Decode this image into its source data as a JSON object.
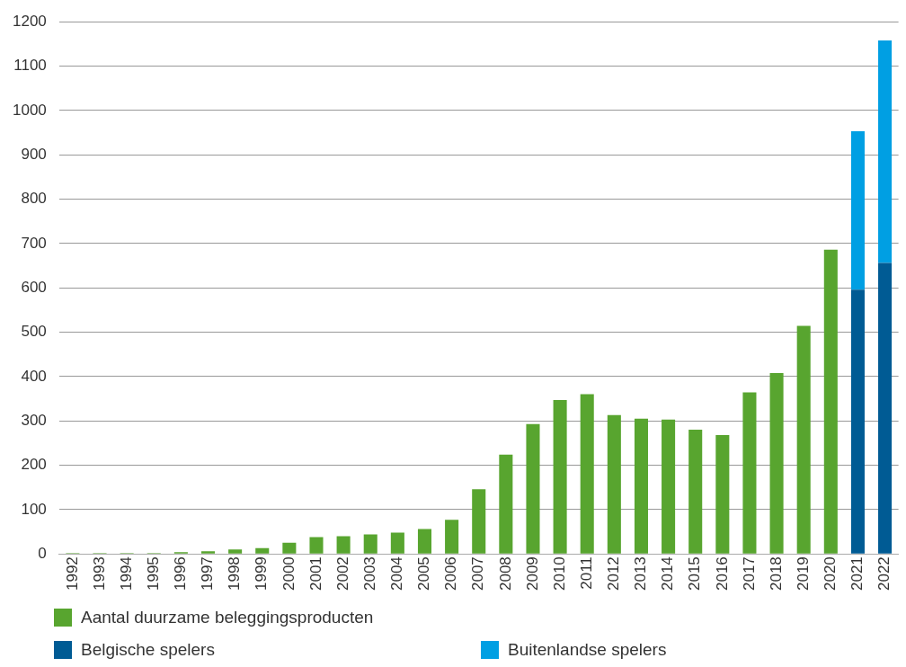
{
  "chart_data": {
    "type": "bar",
    "stacked": true,
    "categories": [
      "1992",
      "1993",
      "1994",
      "1995",
      "1996",
      "1997",
      "1998",
      "1999",
      "2000",
      "2001",
      "2002",
      "2003",
      "2004",
      "2005",
      "2006",
      "2007",
      "2008",
      "2009",
      "2010",
      "2011",
      "2012",
      "2013",
      "2014",
      "2015",
      "2016",
      "2017",
      "2018",
      "2019",
      "2020",
      "2021",
      "2022"
    ],
    "series": [
      {
        "name": "Aantal duurzame beleggingsproducten",
        "color": "#58a52f",
        "values": [
          2,
          2,
          2,
          2,
          4,
          6,
          10,
          13,
          25,
          38,
          40,
          44,
          48,
          56,
          77,
          146,
          224,
          293,
          347,
          360,
          313,
          305,
          303,
          280,
          268,
          364,
          408,
          514,
          686,
          null,
          null
        ]
      },
      {
        "name": "Belgische spelers",
        "color": "#005b94",
        "values": [
          null,
          null,
          null,
          null,
          null,
          null,
          null,
          null,
          null,
          null,
          null,
          null,
          null,
          null,
          null,
          null,
          null,
          null,
          null,
          null,
          null,
          null,
          null,
          null,
          null,
          null,
          null,
          null,
          null,
          596,
          656
        ]
      },
      {
        "name": "Buitenlandse spelers",
        "color": "#009fe3",
        "values": [
          null,
          null,
          null,
          null,
          null,
          null,
          null,
          null,
          null,
          null,
          null,
          null,
          null,
          null,
          null,
          null,
          null,
          null,
          null,
          null,
          null,
          null,
          null,
          null,
          null,
          null,
          null,
          null,
          null,
          357,
          502
        ]
      }
    ],
    "ylim": [
      0,
      1200
    ],
    "yticks": [
      0,
      100,
      200,
      300,
      400,
      500,
      600,
      700,
      800,
      900,
      1000,
      1100,
      1200
    ],
    "grid": "y",
    "legend": "bottom"
  }
}
